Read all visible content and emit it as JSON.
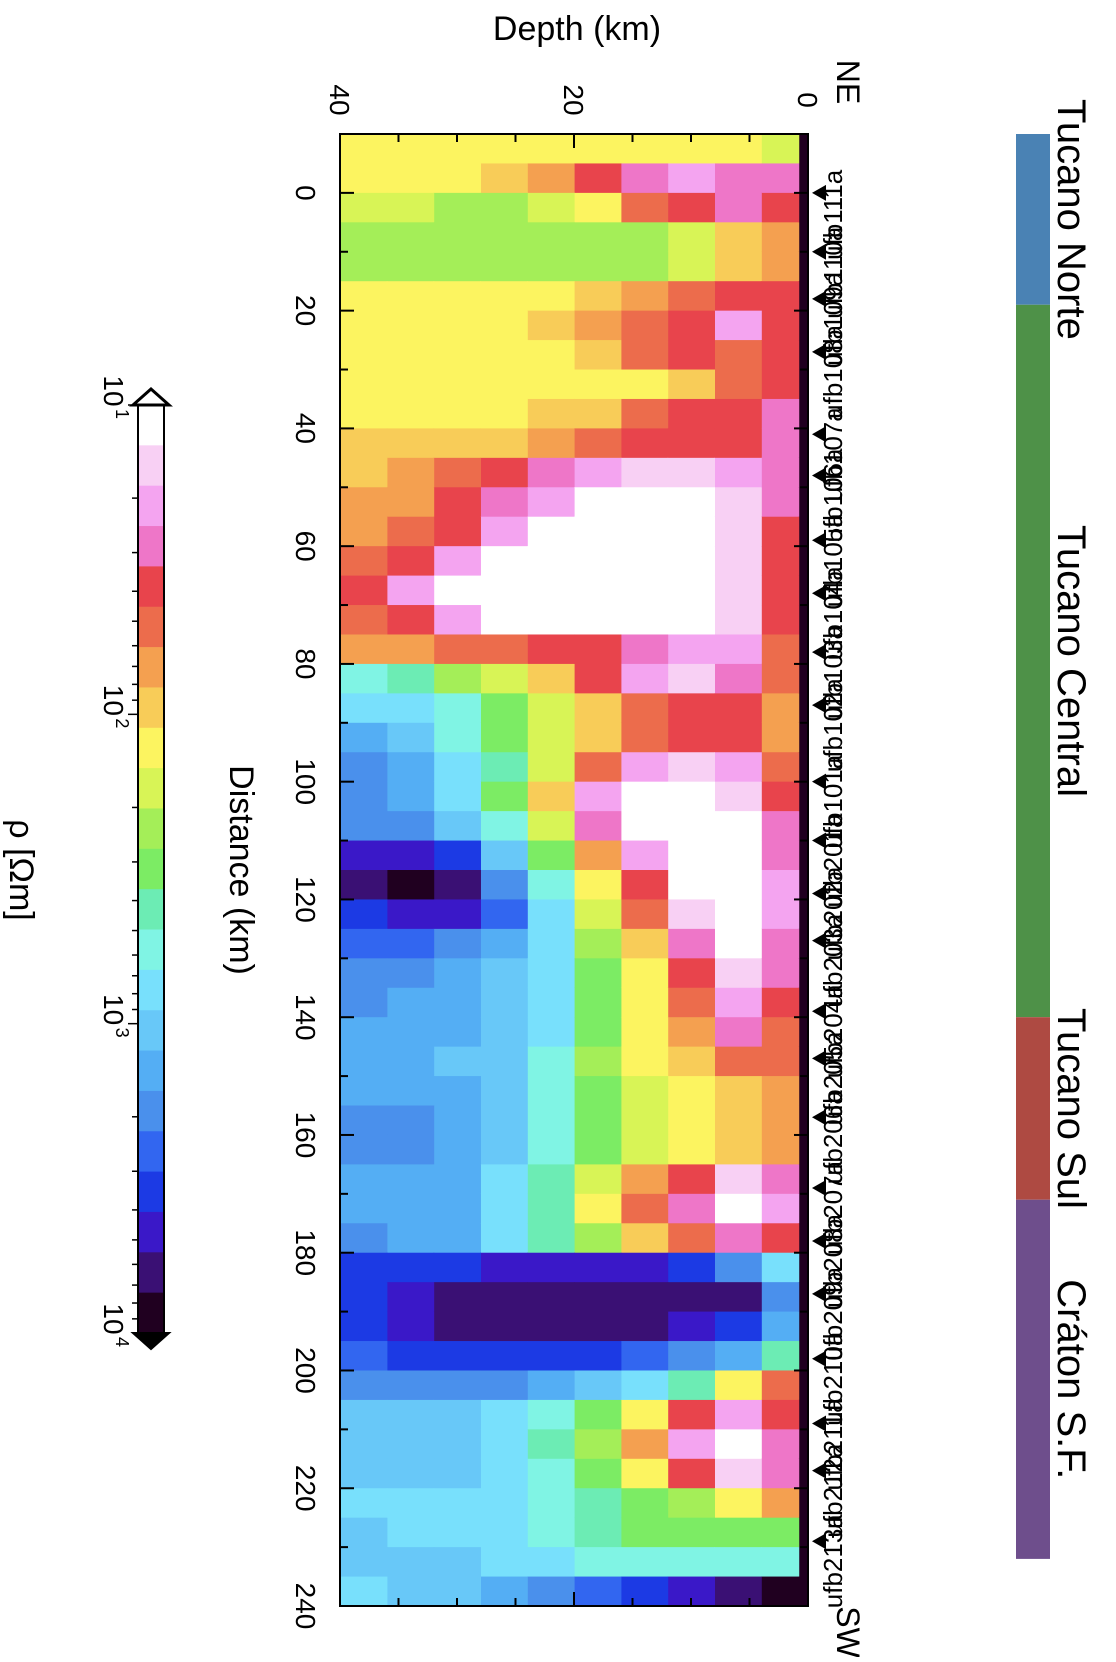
{
  "chart_data": {
    "type": "heatmap",
    "orientation": "rotated 90 degrees clockwise",
    "xlabel": "Distance (km)",
    "ylabel": "Depth (km)",
    "colorbar_label": "ρ [Ωm]",
    "xlim": [
      -10,
      240
    ],
    "ylim": [
      0,
      40
    ],
    "x_ticks": [
      "0",
      "20",
      "40",
      "60",
      "80",
      "100",
      "120",
      "140",
      "160",
      "180",
      "200",
      "220",
      "240"
    ],
    "y_ticks": [
      "0",
      "20",
      "40"
    ],
    "profile_ends": {
      "start": "NE",
      "end": "SW"
    },
    "colorbar": {
      "scale": "log",
      "range": [
        10,
        10000
      ],
      "ticks": [
        {
          "base": "10",
          "exp": "1"
        },
        {
          "base": "10",
          "exp": "2"
        },
        {
          "base": "10",
          "exp": "3"
        },
        {
          "base": "10",
          "exp": "4"
        }
      ],
      "colors": [
        "#ffffff",
        "#f8d0f4",
        "#f4a4f0",
        "#ee76c8",
        "#e8444c",
        "#ec6c4c",
        "#f4a050",
        "#f8cc58",
        "#fcf460",
        "#d8f456",
        "#a4ee58",
        "#7cec64",
        "#6cecb4",
        "#80f4e4",
        "#78e0fc",
        "#68c8f8",
        "#54aef4",
        "#4a90ec",
        "#3266f0",
        "#1c3ae4",
        "#3a18c8",
        "#3a1074",
        "#200020"
      ]
    },
    "stations": [
      {
        "name": "ufb111a",
        "x": 0
      },
      {
        "name": "ufb110a",
        "x": 10
      },
      {
        "name": "ufb109a",
        "x": 18
      },
      {
        "name": "ufb108a",
        "x": 27
      },
      {
        "name": "ufb107a",
        "x": 41
      },
      {
        "name": "ufb106a",
        "x": 48
      },
      {
        "name": "ufb105a",
        "x": 59
      },
      {
        "name": "ufb104a",
        "x": 68
      },
      {
        "name": "ufb103a",
        "x": 78
      },
      {
        "name": "ufb102a",
        "x": 87
      },
      {
        "name": "ufb101a",
        "x": 100
      },
      {
        "name": "ufb201a",
        "x": 110
      },
      {
        "name": "ufb202a",
        "x": 119
      },
      {
        "name": "ufb203a",
        "x": 127
      },
      {
        "name": "ufb204a",
        "x": 139
      },
      {
        "name": "ufb205a",
        "x": 147
      },
      {
        "name": "ufb206a",
        "x": 157
      },
      {
        "name": "ufb207a",
        "x": 169
      },
      {
        "name": "ufb208a",
        "x": 178
      },
      {
        "name": "ufb209a",
        "x": 187
      },
      {
        "name": "ufb210a",
        "x": 198
      },
      {
        "name": "ufb211a",
        "x": 209
      },
      {
        "name": "ufb212a",
        "x": 217
      },
      {
        "name": "ufb213a",
        "x": 229
      }
    ],
    "regions": [
      {
        "name": "Tucano Norte",
        "x_start": -10,
        "x_end": 19,
        "color": "#4a82b4"
      },
      {
        "name": "Tucano Central",
        "x_start": 19,
        "x_end": 140,
        "color": "#4e9148"
      },
      {
        "name": "Tucano Sul",
        "x_start": 140,
        "x_end": 171,
        "color": "#ae4a42"
      },
      {
        "name": "Cráton S.F.",
        "x_start": 171,
        "x_end": 232,
        "color": "#6e4e8c"
      }
    ],
    "resistivity_columns": [
      {
        "x": -10,
        "cols": [
          22,
          9,
          8,
          8,
          8,
          8,
          8,
          8,
          8,
          8,
          8
        ]
      },
      {
        "x": -5,
        "cols": [
          22,
          3,
          3,
          2,
          3,
          4,
          6,
          7,
          8,
          8,
          8
        ]
      },
      {
        "x": 0,
        "cols": [
          22,
          4,
          3,
          4,
          5,
          8,
          9,
          10,
          10,
          9,
          9
        ]
      },
      {
        "x": 5,
        "cols": [
          22,
          6,
          7,
          9,
          10,
          10,
          10,
          10,
          10,
          10,
          10
        ]
      },
      {
        "x": 10,
        "cols": [
          22,
          6,
          7,
          9,
          10,
          10,
          10,
          10,
          10,
          10,
          10
        ]
      },
      {
        "x": 15,
        "cols": [
          22,
          4,
          4,
          5,
          6,
          7,
          8,
          8,
          8,
          8,
          8
        ]
      },
      {
        "x": 20,
        "cols": [
          22,
          4,
          2,
          4,
          5,
          6,
          7,
          8,
          8,
          8,
          8
        ]
      },
      {
        "x": 25,
        "cols": [
          22,
          4,
          5,
          4,
          5,
          7,
          8,
          8,
          8,
          8,
          8
        ]
      },
      {
        "x": 30,
        "cols": [
          22,
          4,
          5,
          7,
          8,
          8,
          8,
          8,
          8,
          8,
          8
        ]
      },
      {
        "x": 35,
        "cols": [
          22,
          3,
          4,
          4,
          5,
          7,
          7,
          8,
          8,
          8,
          8
        ]
      },
      {
        "x": 40,
        "cols": [
          22,
          3,
          4,
          4,
          4,
          5,
          6,
          7,
          7,
          7,
          7
        ]
      },
      {
        "x": 45,
        "cols": [
          22,
          3,
          2,
          1,
          1,
          2,
          3,
          4,
          5,
          6,
          7
        ]
      },
      {
        "x": 50,
        "cols": [
          22,
          3,
          1,
          0,
          0,
          0,
          2,
          3,
          4,
          6,
          6
        ]
      },
      {
        "x": 55,
        "cols": [
          22,
          4,
          1,
          0,
          0,
          0,
          0,
          2,
          4,
          5,
          6
        ]
      },
      {
        "x": 60,
        "cols": [
          22,
          4,
          1,
          0,
          0,
          0,
          0,
          0,
          2,
          4,
          5
        ]
      },
      {
        "x": 65,
        "cols": [
          22,
          4,
          1,
          0,
          0,
          0,
          0,
          0,
          0,
          2,
          4
        ]
      },
      {
        "x": 70,
        "cols": [
          22,
          4,
          1,
          0,
          0,
          0,
          0,
          0,
          2,
          4,
          5
        ]
      },
      {
        "x": 75,
        "cols": [
          22,
          5,
          2,
          2,
          3,
          4,
          4,
          5,
          5,
          6,
          6
        ]
      },
      {
        "x": 80,
        "cols": [
          22,
          5,
          3,
          1,
          2,
          4,
          7,
          9,
          10,
          12,
          13
        ]
      },
      {
        "x": 85,
        "cols": [
          22,
          6,
          4,
          4,
          5,
          7,
          9,
          11,
          13,
          14,
          14
        ]
      },
      {
        "x": 90,
        "cols": [
          22,
          6,
          4,
          4,
          5,
          7,
          9,
          11,
          13,
          15,
          16
        ]
      },
      {
        "x": 95,
        "cols": [
          22,
          5,
          2,
          1,
          2,
          5,
          9,
          12,
          14,
          16,
          17
        ]
      },
      {
        "x": 100,
        "cols": [
          22,
          4,
          1,
          0,
          0,
          2,
          7,
          11,
          14,
          16,
          17
        ]
      },
      {
        "x": 105,
        "cols": [
          22,
          3,
          0,
          0,
          0,
          3,
          9,
          13,
          15,
          17,
          17
        ]
      },
      {
        "x": 110,
        "cols": [
          22,
          3,
          0,
          0,
          2,
          6,
          11,
          15,
          19,
          20,
          20
        ]
      },
      {
        "x": 115,
        "cols": [
          22,
          2,
          0,
          0,
          4,
          8,
          13,
          17,
          21,
          22,
          21
        ]
      },
      {
        "x": 120,
        "cols": [
          22,
          2,
          0,
          1,
          5,
          9,
          14,
          18,
          20,
          20,
          19
        ]
      },
      {
        "x": 125,
        "cols": [
          22,
          3,
          0,
          3,
          7,
          10,
          14,
          16,
          17,
          18,
          18
        ]
      },
      {
        "x": 130,
        "cols": [
          22,
          3,
          1,
          4,
          8,
          11,
          14,
          15,
          16,
          17,
          17
        ]
      },
      {
        "x": 135,
        "cols": [
          22,
          4,
          2,
          5,
          8,
          11,
          14,
          15,
          16,
          16,
          17
        ]
      },
      {
        "x": 140,
        "cols": [
          22,
          5,
          3,
          6,
          8,
          11,
          14,
          15,
          16,
          16,
          16
        ]
      },
      {
        "x": 145,
        "cols": [
          22,
          5,
          5,
          7,
          8,
          10,
          13,
          15,
          15,
          16,
          16
        ]
      },
      {
        "x": 150,
        "cols": [
          22,
          6,
          7,
          8,
          9,
          11,
          13,
          15,
          16,
          16,
          16
        ]
      },
      {
        "x": 155,
        "cols": [
          22,
          6,
          7,
          8,
          9,
          11,
          13,
          15,
          16,
          17,
          17
        ]
      },
      {
        "x": 160,
        "cols": [
          22,
          6,
          7,
          8,
          9,
          11,
          13,
          15,
          16,
          17,
          17
        ]
      },
      {
        "x": 165,
        "cols": [
          22,
          3,
          1,
          4,
          6,
          9,
          12,
          14,
          16,
          16,
          16
        ]
      },
      {
        "x": 170,
        "cols": [
          22,
          2,
          0,
          3,
          5,
          8,
          12,
          14,
          16,
          16,
          16
        ]
      },
      {
        "x": 175,
        "cols": [
          22,
          4,
          3,
          5,
          7,
          10,
          12,
          14,
          16,
          16,
          17
        ]
      },
      {
        "x": 180,
        "cols": [
          22,
          14,
          17,
          19,
          20,
          20,
          20,
          20,
          19,
          19,
          19
        ]
      },
      {
        "x": 185,
        "cols": [
          22,
          17,
          21,
          21,
          21,
          21,
          21,
          21,
          21,
          20,
          19
        ]
      },
      {
        "x": 190,
        "cols": [
          22,
          16,
          19,
          20,
          21,
          21,
          21,
          21,
          21,
          20,
          19
        ]
      },
      {
        "x": 195,
        "cols": [
          22,
          12,
          16,
          17,
          18,
          19,
          19,
          19,
          19,
          19,
          18
        ]
      },
      {
        "x": 200,
        "cols": [
          22,
          5,
          8,
          12,
          14,
          15,
          16,
          17,
          17,
          17,
          17
        ]
      },
      {
        "x": 205,
        "cols": [
          22,
          4,
          2,
          4,
          8,
          11,
          13,
          14,
          15,
          15,
          15
        ]
      },
      {
        "x": 210,
        "cols": [
          22,
          3,
          0,
          2,
          6,
          10,
          12,
          14,
          15,
          15,
          15
        ]
      },
      {
        "x": 215,
        "cols": [
          22,
          3,
          1,
          4,
          8,
          11,
          13,
          14,
          15,
          15,
          15
        ]
      },
      {
        "x": 220,
        "cols": [
          22,
          6,
          8,
          10,
          11,
          12,
          13,
          14,
          14,
          14,
          14
        ]
      },
      {
        "x": 225,
        "cols": [
          22,
          11,
          11,
          11,
          11,
          12,
          13,
          14,
          14,
          14,
          15
        ]
      },
      {
        "x": 230,
        "cols": [
          22,
          13,
          13,
          13,
          13,
          13,
          14,
          14,
          15,
          15,
          15
        ]
      },
      {
        "x": 235,
        "cols": [
          22,
          22,
          21,
          20,
          19,
          18,
          17,
          16,
          15,
          15,
          14
        ]
      }
    ]
  }
}
